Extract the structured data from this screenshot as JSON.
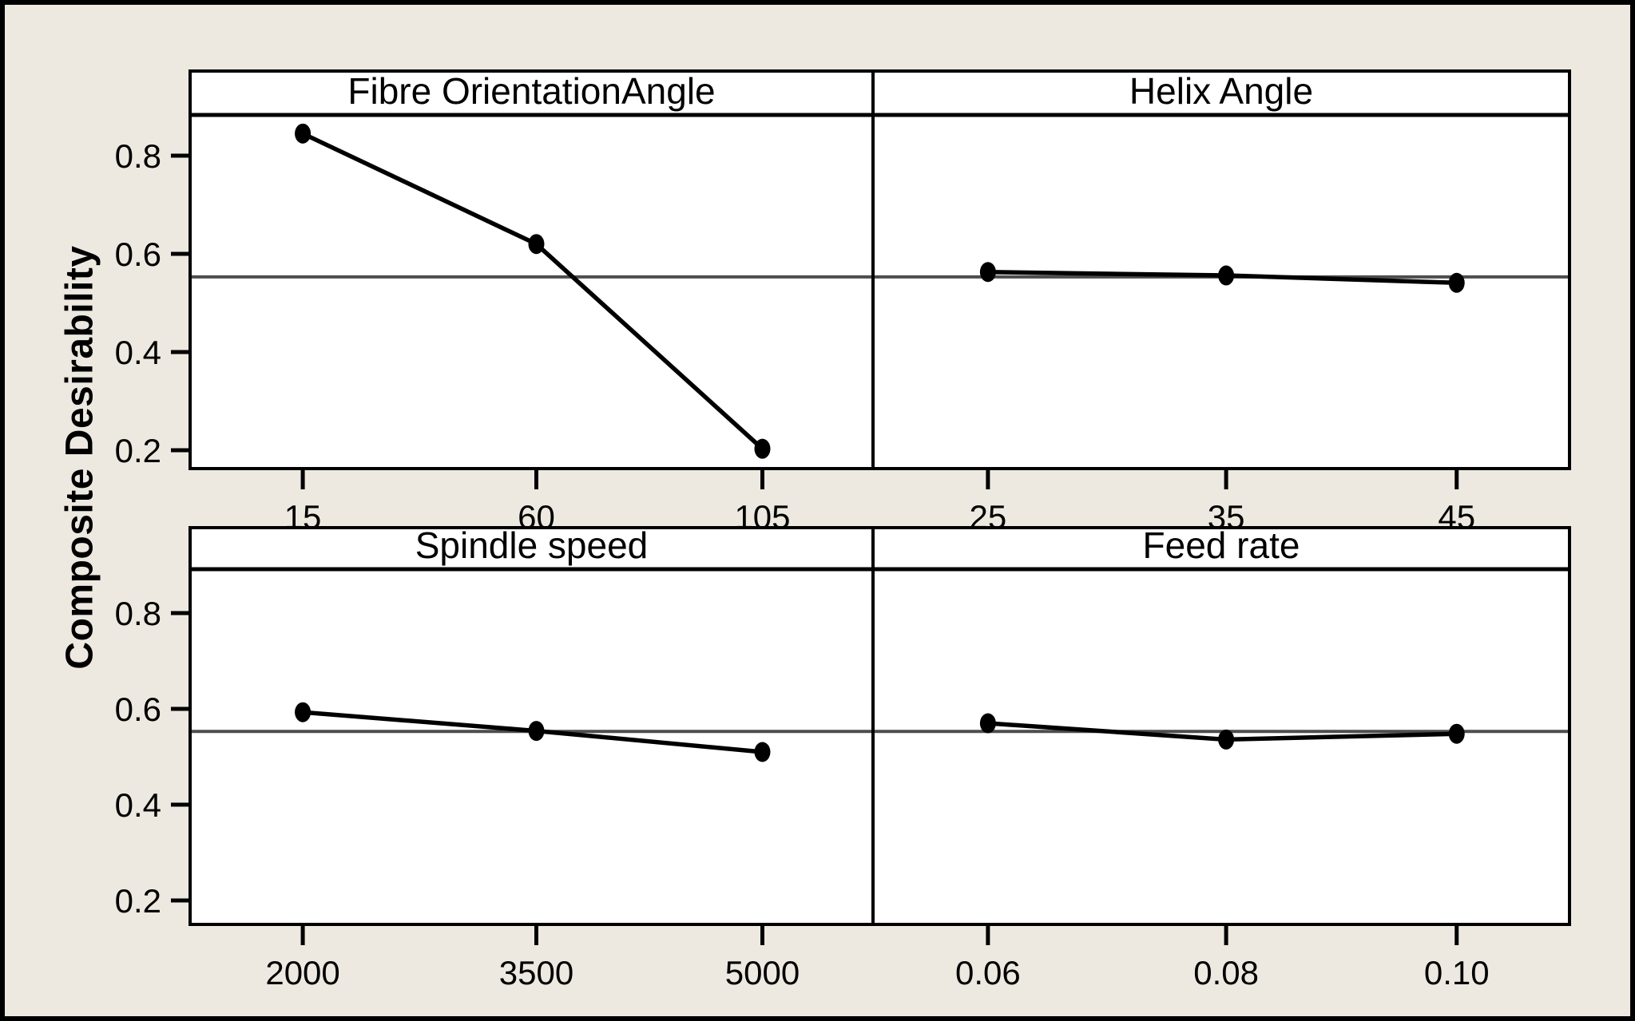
{
  "figure": {
    "ylabel": "Composite Desirability",
    "background_color": "#EDE9E0",
    "panel_fill": "#FFFFFF",
    "frame_color": "#000000",
    "series_color": "#000000",
    "reference_line_color": "#4D4D4D"
  },
  "chart_data": {
    "type": "line",
    "title": "",
    "ylabel": "Composite Desirability",
    "ylim": [
      0.163,
      0.883
    ],
    "y_ticks": [
      0.2,
      0.4,
      0.6,
      0.8
    ],
    "y_tick_labels": [
      "0.2",
      "0.4",
      "0.6",
      "0.8"
    ],
    "grid": false,
    "reference_line": 0.553,
    "marker": "filled-circle",
    "layout": "2x2-shared-y",
    "panels": [
      {
        "title": "Fibre OrientationAngle",
        "row": 0,
        "col": 0,
        "x": [
          15,
          60,
          105
        ],
        "x_tick_labels": [
          "15",
          "60",
          "105"
        ],
        "values": [
          0.845,
          0.62,
          0.203
        ]
      },
      {
        "title": "Helix Angle",
        "row": 0,
        "col": 1,
        "x": [
          25,
          35,
          45
        ],
        "x_tick_labels": [
          "25",
          "35",
          "45"
        ],
        "values": [
          0.563,
          0.556,
          0.541
        ]
      },
      {
        "title": "Spindle speed",
        "row": 1,
        "col": 0,
        "x": [
          2000,
          3500,
          5000
        ],
        "x_tick_labels": [
          "2000",
          "3500",
          "5000"
        ],
        "values": [
          0.593,
          0.554,
          0.51
        ]
      },
      {
        "title": "Feed rate",
        "row": 1,
        "col": 1,
        "x": [
          0.06,
          0.08,
          0.1
        ],
        "x_tick_labels": [
          "0.06",
          "0.08",
          "0.10"
        ],
        "values": [
          0.57,
          0.536,
          0.548
        ]
      }
    ]
  }
}
